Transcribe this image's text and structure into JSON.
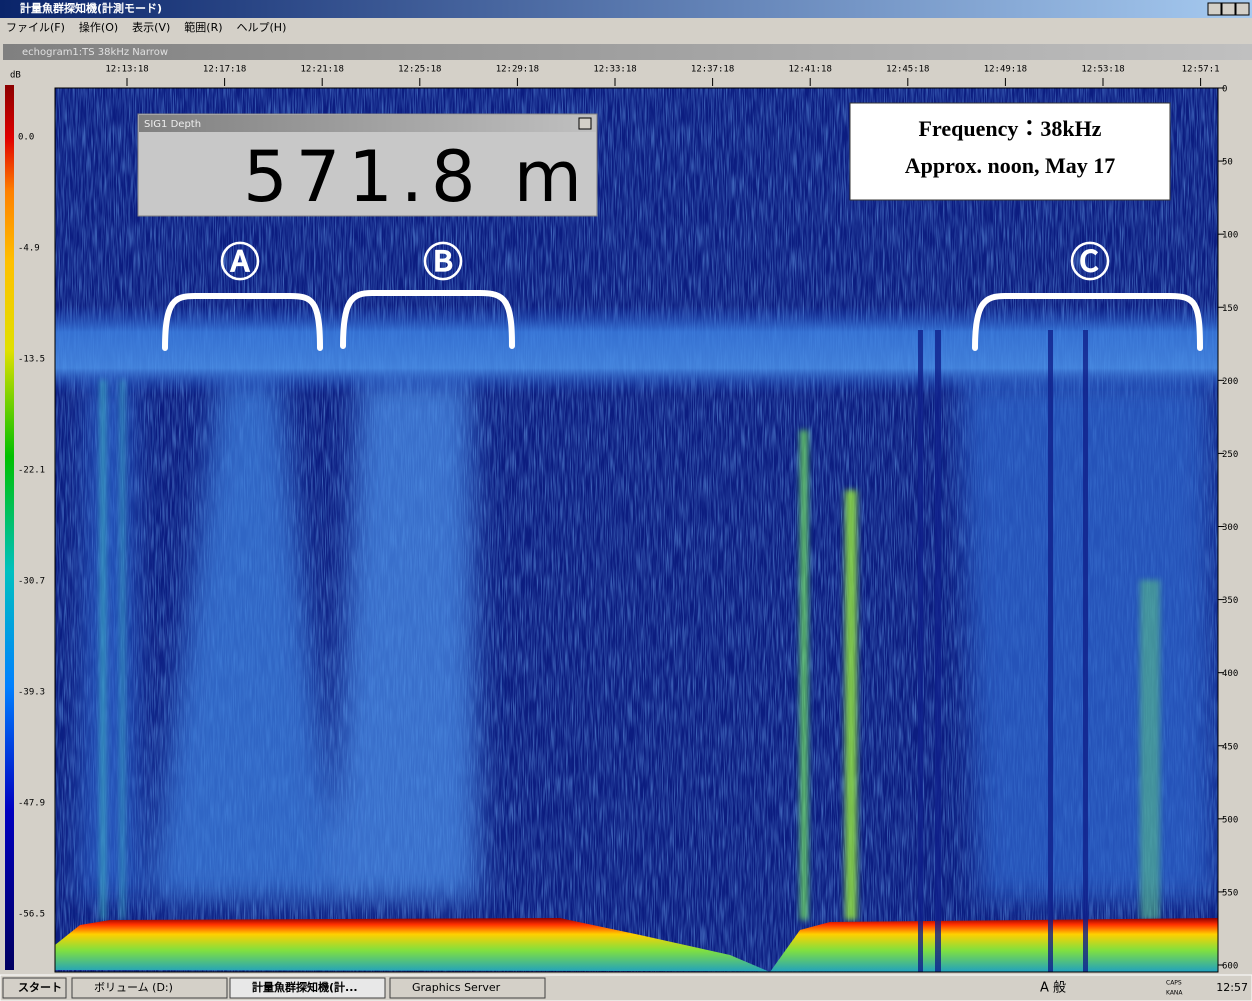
{
  "window": {
    "title": "計量魚群探知機(計測モード)"
  },
  "menu": [
    "ファイル(F)",
    "操作(O)",
    "表示(V)",
    "範囲(R)",
    "ヘルプ(H)"
  ],
  "child_window": {
    "title": "echogram1:TS 38kHz Narrow"
  },
  "time_axis": [
    "12:13:18",
    "12:17:18",
    "12:21:18",
    "12:25:18",
    "12:29:18",
    "12:33:18",
    "12:37:18",
    "12:41:18",
    "12:45:18",
    "12:49:18",
    "12:53:18",
    "12:57:1"
  ],
  "color_scale": {
    "unit": "dB",
    "labels": [
      "0.0",
      "-4.9",
      "-13.5",
      "-22.1",
      "-30.7",
      "-39.3",
      "-47.9",
      "-56.5"
    ]
  },
  "depth_axis": [
    "0",
    "50",
    "100",
    "150",
    "200",
    "250",
    "300",
    "350",
    "400",
    "450",
    "500",
    "550",
    "600"
  ],
  "depth_popup": {
    "title": "SIG1 Depth",
    "value": "571.8 m"
  },
  "annotation": {
    "line1": "Frequency：38kHz",
    "line2": "Approx. noon, May 17"
  },
  "markers": [
    "Ⓐ",
    "Ⓑ",
    "Ⓒ"
  ],
  "taskbar": {
    "start": "スタート",
    "items": [
      "ボリューム (D:)",
      "計量魚群探知機(計...",
      "Graphics Server"
    ],
    "tray_ime": "A 般",
    "tray_caps": "CAPS",
    "tray_kana": "KANA",
    "clock": "12:57"
  }
}
